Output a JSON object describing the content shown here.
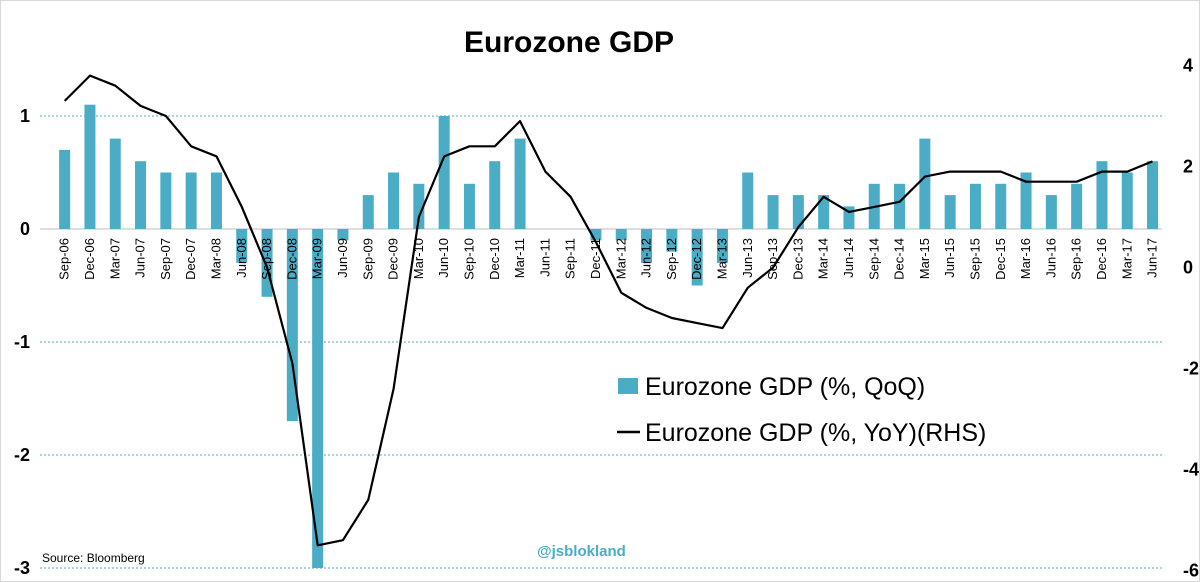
{
  "chart_data": {
    "type": "bar",
    "title": "Eurozone GDP",
    "categories": [
      "Sep-06",
      "Dec-06",
      "Mar-07",
      "Jun-07",
      "Sep-07",
      "Dec-07",
      "Mar-08",
      "Jun-08",
      "Sep-08",
      "Dec-08",
      "Mar-09",
      "Jun-09",
      "Sep-09",
      "Dec-09",
      "Mar-10",
      "Jun-10",
      "Sep-10",
      "Dec-10",
      "Mar-11",
      "Jun-11",
      "Sep-11",
      "Dec-11",
      "Mar-12",
      "Jun-12",
      "Sep-12",
      "Dec-12",
      "Mar-13",
      "Jun-13",
      "Sep-13",
      "Dec-13",
      "Mar-14",
      "Jun-14",
      "Sep-14",
      "Dec-14",
      "Mar-15",
      "Jun-15",
      "Sep-15",
      "Dec-15",
      "Mar-16",
      "Jun-16",
      "Sep-16",
      "Dec-16",
      "Mar-17",
      "Jun-17"
    ],
    "series": [
      {
        "name": "Eurozone GDP (%, QoQ)",
        "type": "bar",
        "axis": "left",
        "color": "#4bacc6",
        "values": [
          0.7,
          1.1,
          0.8,
          0.6,
          0.5,
          0.5,
          0.5,
          -0.3,
          -0.6,
          -1.7,
          -3.0,
          -0.1,
          0.3,
          0.5,
          0.4,
          1.0,
          0.4,
          0.6,
          0.8,
          0.0,
          0.0,
          -0.1,
          -0.1,
          -0.3,
          -0.2,
          -0.5,
          -0.3,
          0.5,
          0.3,
          0.3,
          0.3,
          0.2,
          0.4,
          0.4,
          0.8,
          0.3,
          0.4,
          0.4,
          0.5,
          0.3,
          0.4,
          0.6,
          0.5,
          0.6
        ]
      },
      {
        "name": "Eurozone GDP (%, YoY)(RHS)",
        "type": "line",
        "axis": "right",
        "color": "#000000",
        "values": [
          3.3,
          3.8,
          3.6,
          3.2,
          3.0,
          2.4,
          2.2,
          1.2,
          0.0,
          -1.9,
          -5.5,
          -5.4,
          -4.6,
          -2.4,
          1.0,
          2.2,
          2.4,
          2.4,
          2.9,
          1.9,
          1.4,
          0.5,
          -0.5,
          -0.8,
          -1.0,
          -1.1,
          -1.2,
          -0.4,
          0.0,
          0.8,
          1.4,
          1.1,
          1.2,
          1.3,
          1.8,
          1.9,
          1.9,
          1.9,
          1.7,
          1.7,
          1.7,
          1.9,
          1.9,
          2.1
        ]
      }
    ],
    "ylim_left": [
      -3,
      1.3
    ],
    "ylim_right": [
      -6,
      4
    ],
    "yticks_left": [
      "1",
      "0",
      "-1",
      "-2",
      "-3"
    ],
    "yticks_right": [
      "4",
      "2",
      "0",
      "-2",
      "-4",
      "-6"
    ],
    "grid": true,
    "legend_position": "right-middle"
  },
  "source": "Source:  Bloomberg",
  "watermark": "@jsblokland"
}
